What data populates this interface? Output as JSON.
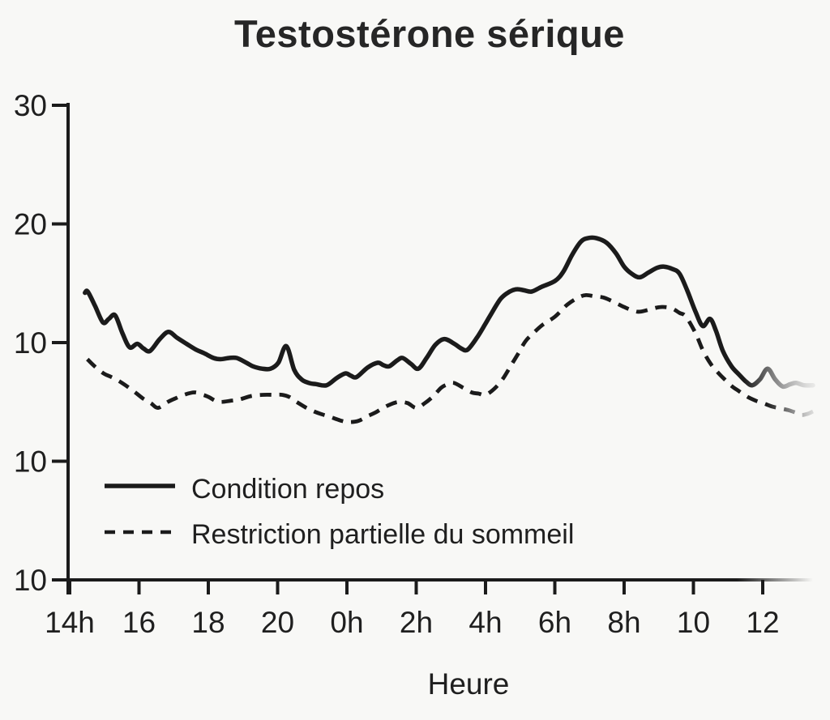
{
  "title": "Testostérone sérique",
  "x_axis": {
    "label": "Heure",
    "ticks": [
      "14h",
      "16",
      "18",
      "20",
      "0h",
      "2h",
      "4h",
      "6h",
      "8h",
      "10",
      "12"
    ]
  },
  "y_axis": {
    "ticks": [
      "30",
      "20",
      "10",
      "10",
      "10"
    ]
  },
  "legend": [
    {
      "label": "Condition repos",
      "style": "solid"
    },
    {
      "label": "Restriction partielle du sommeil",
      "style": "dashed"
    }
  ],
  "colors": {
    "line": "#1b1b1b",
    "text": "#1f1f1f",
    "title": "#262626",
    "background": "#f8f8f6",
    "fade_gray": "#9a9a9a"
  },
  "chart_data": {
    "type": "line",
    "title": "Testostérone sérique",
    "xlabel": "Heure",
    "x_tick_labels": [
      "14h",
      "16",
      "18",
      "20",
      "0h",
      "2h",
      "4h",
      "6h",
      "8h",
      "10",
      "12"
    ],
    "y_tick_labels": [
      "30",
      "20",
      "10",
      "10",
      "10"
    ],
    "x_encoding": "t = axis position in hours, 2 units between adjacent ticks, t=0 at the 14h tick",
    "grid": false,
    "legend_position": "bottom-left inside plot",
    "series": [
      {
        "name": "Condition repos",
        "style": "solid",
        "fades_out_at_right": true,
        "points": [
          [
            0.44,
            14.2
          ],
          [
            0.52,
            14.3
          ],
          [
            0.73,
            13.1
          ],
          [
            0.96,
            11.7
          ],
          [
            1.13,
            12.0
          ],
          [
            1.31,
            12.3
          ],
          [
            1.52,
            10.8
          ],
          [
            1.73,
            9.6
          ],
          [
            1.95,
            9.9
          ],
          [
            2.13,
            9.5
          ],
          [
            2.32,
            9.3
          ],
          [
            2.6,
            10.3
          ],
          [
            2.85,
            10.9
          ],
          [
            3.1,
            10.4
          ],
          [
            3.37,
            9.9
          ],
          [
            3.65,
            9.4
          ],
          [
            3.88,
            9.1
          ],
          [
            4.15,
            8.7
          ],
          [
            4.35,
            8.6
          ],
          [
            4.6,
            8.7
          ],
          [
            4.82,
            8.7
          ],
          [
            5.1,
            8.3
          ],
          [
            5.29,
            8.0
          ],
          [
            5.55,
            7.8
          ],
          [
            5.8,
            7.8
          ],
          [
            6.02,
            8.3
          ],
          [
            6.25,
            9.7
          ],
          [
            6.48,
            7.7
          ],
          [
            6.69,
            6.9
          ],
          [
            6.9,
            6.6
          ],
          [
            7.11,
            6.5
          ],
          [
            7.41,
            6.4
          ],
          [
            7.7,
            7.0
          ],
          [
            7.95,
            7.4
          ],
          [
            8.12,
            7.2
          ],
          [
            8.28,
            7.1
          ],
          [
            8.6,
            7.9
          ],
          [
            8.89,
            8.3
          ],
          [
            9.05,
            8.1
          ],
          [
            9.22,
            8.0
          ],
          [
            9.45,
            8.5
          ],
          [
            9.61,
            8.7
          ],
          [
            9.85,
            8.2
          ],
          [
            10.06,
            7.8
          ],
          [
            10.3,
            8.7
          ],
          [
            10.55,
            9.8
          ],
          [
            10.81,
            10.3
          ],
          [
            11.1,
            9.9
          ],
          [
            11.3,
            9.5
          ],
          [
            11.48,
            9.4
          ],
          [
            11.75,
            10.4
          ],
          [
            12.0,
            11.6
          ],
          [
            12.14,
            12.3
          ],
          [
            12.44,
            13.7
          ],
          [
            12.7,
            14.3
          ],
          [
            12.91,
            14.5
          ],
          [
            13.12,
            14.4
          ],
          [
            13.33,
            14.3
          ],
          [
            13.62,
            14.7
          ],
          [
            14.01,
            15.2
          ],
          [
            14.25,
            16.0
          ],
          [
            14.5,
            17.4
          ],
          [
            14.75,
            18.5
          ],
          [
            14.95,
            18.8
          ],
          [
            15.2,
            18.8
          ],
          [
            15.5,
            18.4
          ],
          [
            15.77,
            17.5
          ],
          [
            16.0,
            16.4
          ],
          [
            16.22,
            15.8
          ],
          [
            16.45,
            15.5
          ],
          [
            16.7,
            15.9
          ],
          [
            16.95,
            16.3
          ],
          [
            17.15,
            16.4
          ],
          [
            17.4,
            16.2
          ],
          [
            17.6,
            15.8
          ],
          [
            17.82,
            14.4
          ],
          [
            18.06,
            12.6
          ],
          [
            18.27,
            11.4
          ],
          [
            18.48,
            12.0
          ],
          [
            18.65,
            11.0
          ],
          [
            18.85,
            9.3
          ],
          [
            19.1,
            8.0
          ],
          [
            19.32,
            7.3
          ],
          [
            19.52,
            6.7
          ],
          [
            19.7,
            6.4
          ],
          [
            19.92,
            6.9
          ],
          [
            20.14,
            7.8
          ],
          [
            20.36,
            6.9
          ],
          [
            20.58,
            6.3
          ],
          [
            20.8,
            6.5
          ],
          [
            20.97,
            6.6
          ],
          [
            21.2,
            6.4
          ],
          [
            21.45,
            6.4
          ]
        ]
      },
      {
        "name": "Restriction partielle du sommeil",
        "style": "dashed",
        "fades_out_at_right": true,
        "points": [
          [
            0.51,
            8.6
          ],
          [
            0.72,
            8.0
          ],
          [
            0.98,
            7.4
          ],
          [
            1.2,
            7.1
          ],
          [
            1.4,
            6.8
          ],
          [
            1.61,
            6.4
          ],
          [
            1.85,
            5.9
          ],
          [
            2.11,
            5.3
          ],
          [
            2.34,
            4.9
          ],
          [
            2.55,
            4.5
          ],
          [
            2.83,
            5.0
          ],
          [
            3.05,
            5.3
          ],
          [
            3.3,
            5.6
          ],
          [
            3.6,
            5.8
          ],
          [
            3.85,
            5.6
          ],
          [
            4.02,
            5.4
          ],
          [
            4.2,
            5.1
          ],
          [
            4.37,
            5.0
          ],
          [
            4.65,
            5.1
          ],
          [
            4.89,
            5.2
          ],
          [
            5.25,
            5.5
          ],
          [
            5.59,
            5.6
          ],
          [
            5.9,
            5.6
          ],
          [
            6.13,
            5.6
          ],
          [
            6.35,
            5.4
          ],
          [
            6.55,
            5.0
          ],
          [
            6.83,
            4.5
          ],
          [
            7.05,
            4.2
          ],
          [
            7.23,
            4.0
          ],
          [
            7.45,
            3.8
          ],
          [
            7.65,
            3.6
          ],
          [
            7.85,
            3.4
          ],
          [
            8.05,
            3.3
          ],
          [
            8.33,
            3.4
          ],
          [
            8.6,
            3.8
          ],
          [
            8.82,
            4.1
          ],
          [
            9.05,
            4.5
          ],
          [
            9.26,
            4.8
          ],
          [
            9.5,
            5.0
          ],
          [
            9.75,
            4.9
          ],
          [
            10.0,
            4.5
          ],
          [
            10.25,
            4.9
          ],
          [
            10.5,
            5.5
          ],
          [
            10.72,
            6.2
          ],
          [
            10.92,
            6.5
          ],
          [
            11.09,
            6.6
          ],
          [
            11.35,
            6.2
          ],
          [
            11.6,
            5.8
          ],
          [
            11.8,
            5.7
          ],
          [
            12.0,
            5.6
          ],
          [
            12.25,
            6.1
          ],
          [
            12.49,
            6.9
          ],
          [
            12.72,
            8.0
          ],
          [
            12.95,
            9.1
          ],
          [
            13.15,
            10.1
          ],
          [
            13.38,
            10.8
          ],
          [
            13.65,
            11.5
          ],
          [
            14.01,
            12.2
          ],
          [
            14.36,
            13.2
          ],
          [
            14.68,
            13.8
          ],
          [
            14.9,
            14.0
          ],
          [
            15.15,
            13.9
          ],
          [
            15.4,
            13.8
          ],
          [
            15.65,
            13.5
          ],
          [
            16.0,
            13.0
          ],
          [
            16.25,
            12.7
          ],
          [
            16.45,
            12.6
          ],
          [
            16.75,
            12.8
          ],
          [
            17.05,
            13.0
          ],
          [
            17.36,
            12.9
          ],
          [
            17.6,
            12.5
          ],
          [
            17.78,
            12.2
          ],
          [
            18.06,
            10.8
          ],
          [
            18.28,
            9.3
          ],
          [
            18.5,
            8.2
          ],
          [
            18.7,
            7.5
          ],
          [
            18.9,
            6.9
          ],
          [
            19.12,
            6.3
          ],
          [
            19.32,
            5.9
          ],
          [
            19.58,
            5.4
          ],
          [
            19.8,
            5.1
          ],
          [
            20.05,
            4.85
          ],
          [
            20.28,
            4.6
          ],
          [
            20.52,
            4.45
          ],
          [
            20.75,
            4.3
          ],
          [
            20.95,
            4.1
          ],
          [
            21.12,
            3.9
          ],
          [
            21.3,
            4.0
          ],
          [
            21.45,
            4.2
          ]
        ]
      }
    ]
  }
}
